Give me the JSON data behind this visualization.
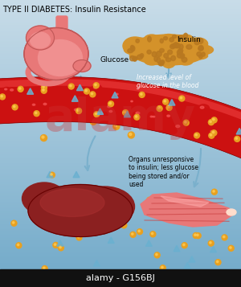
{
  "title": "TYPE II DIABETES: Insulin Resistance",
  "title_fontsize": 7,
  "bg_color_top": "#c8dce8",
  "bg_color_bottom": "#6fa8c8",
  "blood_vessel_color": "#cc1111",
  "blood_vessel_highlight": "#ee3333",
  "blood_vessel_shadow": "#990000",
  "stomach_color": "#e87878",
  "stomach_outline": "#c05050",
  "pancreas_color": "#d4922a",
  "pancreas_dot_color": "#b87820",
  "liver_color": "#8b2020",
  "liver_highlight": "#aa3030",
  "muscle_color1": "#e87878",
  "muscle_color2": "#cc5555",
  "muscle_highlight": "#ffaaaa",
  "glucose_color": "#e8a020",
  "insulin_color": "#6ab0d0",
  "arrow_color": "#7ab0cc",
  "label_glucose": "Glucose",
  "label_insulin": "Insulin",
  "label_blood": "Increased level of\nglucose in the blood",
  "label_organs": "Organs unresponsive\nto insulin; less glucose\nbeing stored and/or\nused",
  "watermark": "alamy - G156BJ",
  "watermark_color": "#888888",
  "alamy_color": "#cc3333",
  "alamy_alpha": 0.35,
  "figsize": [
    3.0,
    3.57
  ],
  "dpi": 100
}
